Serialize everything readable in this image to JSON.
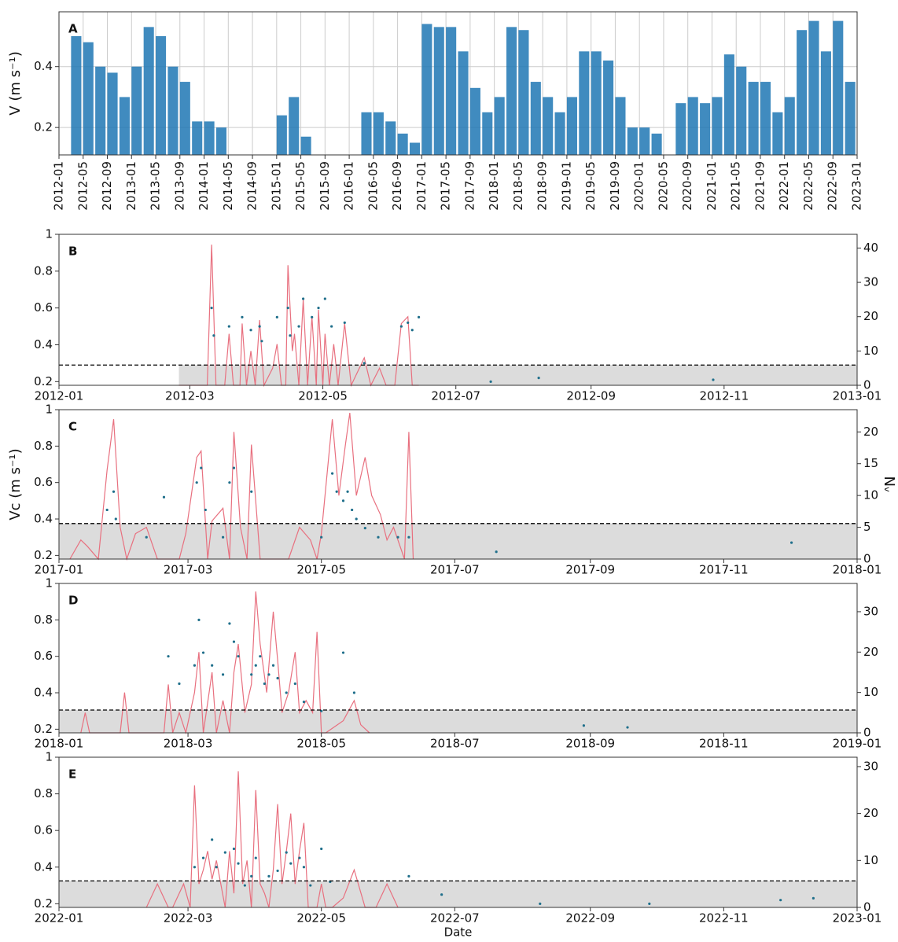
{
  "chart_data": [
    {
      "type": "bar",
      "panel_label": "A",
      "ylabel": "V (m s⁻¹)",
      "color": "#1f77b4",
      "grid": true,
      "xgrid": true,
      "xlim": [
        0,
        132
      ],
      "ylim": [
        0.11,
        0.58
      ],
      "yticks": [
        0.2,
        0.4
      ],
      "xticks": [
        {
          "value": 0,
          "label": "2012-01"
        },
        {
          "value": 4,
          "label": "2012-05"
        },
        {
          "value": 8,
          "label": "2012-09"
        },
        {
          "value": 12,
          "label": "2013-01"
        },
        {
          "value": 16,
          "label": "2013-05"
        },
        {
          "value": 20,
          "label": "2013-09"
        },
        {
          "value": 24,
          "label": "2014-01"
        },
        {
          "value": 28,
          "label": "2014-05"
        },
        {
          "value": 32,
          "label": "2014-09"
        },
        {
          "value": 36,
          "label": "2015-01"
        },
        {
          "value": 40,
          "label": "2015-05"
        },
        {
          "value": 44,
          "label": "2015-09"
        },
        {
          "value": 48,
          "label": "2016-01"
        },
        {
          "value": 52,
          "label": "2016-05"
        },
        {
          "value": 56,
          "label": "2016-09"
        },
        {
          "value": 60,
          "label": "2017-01"
        },
        {
          "value": 64,
          "label": "2017-05"
        },
        {
          "value": 68,
          "label": "2017-09"
        },
        {
          "value": 72,
          "label": "2018-01"
        },
        {
          "value": 76,
          "label": "2018-05"
        },
        {
          "value": 80,
          "label": "2018-09"
        },
        {
          "value": 84,
          "label": "2019-01"
        },
        {
          "value": 88,
          "label": "2019-05"
        },
        {
          "value": 92,
          "label": "2019-09"
        },
        {
          "value": 96,
          "label": "2020-01"
        },
        {
          "value": 100,
          "label": "2020-05"
        },
        {
          "value": 104,
          "label": "2020-09"
        },
        {
          "value": 108,
          "label": "2021-01"
        },
        {
          "value": 112,
          "label": "2021-05"
        },
        {
          "value": 116,
          "label": "2021-09"
        },
        {
          "value": 120,
          "label": "2022-01"
        },
        {
          "value": 124,
          "label": "2022-05"
        },
        {
          "value": 128,
          "label": "2022-09"
        },
        {
          "value": 132,
          "label": "2023-01"
        }
      ],
      "x": [
        0,
        2,
        4,
        6,
        8,
        10,
        12,
        14,
        16,
        18,
        20,
        22,
        24,
        26,
        28,
        30,
        32,
        34,
        36,
        38,
        40,
        42,
        44,
        46,
        48,
        50,
        52,
        54,
        56,
        58,
        60,
        62,
        64,
        66,
        68,
        70,
        72,
        74,
        76,
        78,
        80,
        82,
        84,
        86,
        88,
        90,
        92,
        94,
        96,
        98,
        100,
        102,
        104,
        106,
        108,
        110,
        112,
        114,
        116,
        118,
        120,
        122,
        124,
        126,
        128,
        130
      ],
      "values": [
        null,
        0.5,
        0.48,
        0.4,
        0.38,
        0.3,
        0.4,
        0.53,
        0.5,
        0.4,
        0.35,
        0.22,
        0.22,
        0.2,
        null,
        null,
        null,
        null,
        0.24,
        0.3,
        0.17,
        null,
        null,
        null,
        null,
        0.25,
        0.25,
        0.22,
        0.18,
        0.15,
        0.54,
        0.53,
        0.53,
        0.45,
        0.33,
        0.25,
        0.3,
        0.53,
        0.52,
        0.35,
        0.3,
        0.25,
        0.3,
        0.45,
        0.45,
        0.42,
        0.3,
        0.2,
        0.2,
        0.18,
        null,
        0.28,
        0.3,
        0.28,
        0.3,
        0.44,
        0.4,
        0.35,
        0.35,
        0.25,
        0.3,
        0.52,
        0.55,
        0.45,
        0.55,
        0.35
      ]
    },
    {
      "type": "scatter",
      "panel_label": "B",
      "xlim": [
        0,
        366
      ],
      "ylim": [
        0.18,
        1.0
      ],
      "yticks": [
        0.2,
        0.4,
        0.6,
        0.8,
        1.0
      ],
      "y2lim": [
        0,
        44
      ],
      "y2ticks": [
        0,
        10,
        20,
        30,
        40
      ],
      "threshold": 0.29,
      "shade_start": 55,
      "xticks": [
        {
          "value": 0,
          "label": "2012-01"
        },
        {
          "value": 60,
          "label": "2012-03"
        },
        {
          "value": 121,
          "label": "2012-05"
        },
        {
          "value": 182,
          "label": "2012-07"
        },
        {
          "value": 244,
          "label": "2012-09"
        },
        {
          "value": 305,
          "label": "2012-11"
        },
        {
          "value": 366,
          "label": "2013-01"
        }
      ],
      "series": [
        {
          "color": "#e8707f",
          "axis": "y2",
          "x": [
            55,
            68,
            70,
            72,
            76,
            78,
            80,
            83,
            84,
            86,
            88,
            90,
            92,
            94,
            98,
            100,
            102,
            104,
            105,
            107,
            108,
            110,
            112,
            114,
            116,
            118,
            119,
            121,
            122,
            124,
            126,
            128,
            131,
            134,
            140,
            143,
            147,
            150,
            154,
            157,
            160,
            162,
            165
          ],
          "values": [
            0,
            0,
            41,
            0,
            0,
            15,
            0,
            0,
            18,
            0,
            10,
            0,
            19,
            0,
            5,
            12,
            0,
            0,
            35,
            10,
            15,
            0,
            25,
            0,
            20,
            0,
            22,
            0,
            15,
            0,
            12,
            0,
            18,
            0,
            8,
            0,
            5,
            0,
            0,
            18,
            20,
            0,
            0
          ]
        },
        {
          "color": "#1f6f8b",
          "x": [
            70,
            71,
            78,
            84,
            88,
            92,
            93,
            100,
            105,
            106,
            110,
            112,
            116,
            119,
            122,
            125,
            131,
            140,
            157,
            160,
            162,
            165,
            198,
            220,
            300
          ],
          "values": [
            0.6,
            0.45,
            0.5,
            0.55,
            0.48,
            0.5,
            0.42,
            0.55,
            0.6,
            0.45,
            0.5,
            0.65,
            0.55,
            0.6,
            0.65,
            0.5,
            0.52,
            0.3,
            0.5,
            0.52,
            0.48,
            0.55,
            0.2,
            0.22,
            0.21
          ]
        }
      ]
    },
    {
      "type": "scatter",
      "panel_label": "C",
      "ylabel": "Vc (m s⁻¹)",
      "y2label": "Nᵥ",
      "xlim": [
        0,
        365
      ],
      "ylim": [
        0.18,
        1.0
      ],
      "yticks": [
        0.2,
        0.4,
        0.6,
        0.8,
        1.0
      ],
      "y2lim": [
        0,
        23.5
      ],
      "y2ticks": [
        0,
        5,
        10,
        15,
        20
      ],
      "threshold": 0.375,
      "shade_start": 0,
      "xticks": [
        {
          "value": 0,
          "label": "2017-01"
        },
        {
          "value": 59,
          "label": "2017-03"
        },
        {
          "value": 120,
          "label": "2017-05"
        },
        {
          "value": 181,
          "label": "2017-07"
        },
        {
          "value": 243,
          "label": "2017-09"
        },
        {
          "value": 304,
          "label": "2017-11"
        },
        {
          "value": 365,
          "label": "2018-01"
        }
      ],
      "series": [
        {
          "color": "#e8707f",
          "axis": "y2",
          "x": [
            5,
            10,
            13,
            18,
            22,
            25,
            28,
            31,
            35,
            40,
            45,
            55,
            58,
            63,
            65,
            68,
            70,
            75,
            78,
            80,
            83,
            86,
            88,
            92,
            105,
            110,
            115,
            118,
            120,
            125,
            128,
            131,
            133,
            136,
            140,
            143,
            147,
            150,
            153,
            155,
            158,
            160,
            162
          ],
          "values": [
            0,
            3,
            2,
            0,
            14,
            22,
            5,
            0,
            4,
            5,
            0,
            0,
            4,
            16,
            17,
            0,
            6,
            8,
            0,
            20,
            5,
            0,
            18,
            0,
            0,
            5,
            3,
            0,
            4,
            22,
            10,
            18,
            23,
            10,
            16,
            10,
            7,
            3,
            5,
            3,
            0,
            20,
            0
          ]
        },
        {
          "color": "#1f6f8b",
          "x": [
            22,
            25,
            26,
            40,
            48,
            63,
            65,
            67,
            75,
            78,
            80,
            88,
            120,
            125,
            127,
            130,
            132,
            134,
            136,
            140,
            146,
            155,
            160,
            200,
            335
          ],
          "values": [
            0.45,
            0.55,
            0.4,
            0.3,
            0.52,
            0.6,
            0.68,
            0.45,
            0.3,
            0.6,
            0.68,
            0.55,
            0.3,
            0.65,
            0.55,
            0.5,
            0.55,
            0.45,
            0.4,
            0.35,
            0.3,
            0.3,
            0.3,
            0.22,
            0.27
          ]
        }
      ]
    },
    {
      "type": "scatter",
      "panel_label": "D",
      "xlim": [
        0,
        365
      ],
      "ylim": [
        0.18,
        1.0
      ],
      "yticks": [
        0.2,
        0.4,
        0.6,
        0.8,
        1.0
      ],
      "y2lim": [
        0,
        37
      ],
      "y2ticks": [
        0,
        10,
        20,
        30
      ],
      "threshold": 0.305,
      "shade_start": 0,
      "xticks": [
        {
          "value": 0,
          "label": "2018-01"
        },
        {
          "value": 59,
          "label": "2018-03"
        },
        {
          "value": 120,
          "label": "2018-05"
        },
        {
          "value": 181,
          "label": "2018-07"
        },
        {
          "value": 243,
          "label": "2018-09"
        },
        {
          "value": 304,
          "label": "2018-11"
        },
        {
          "value": 365,
          "label": "2019-01"
        }
      ],
      "series": [
        {
          "color": "#e8707f",
          "axis": "y2",
          "x": [
            10,
            12,
            14,
            28,
            30,
            32,
            48,
            50,
            52,
            55,
            58,
            62,
            64,
            66,
            70,
            72,
            75,
            78,
            80,
            82,
            85,
            88,
            90,
            92,
            95,
            98,
            100,
            102,
            105,
            108,
            110,
            113,
            116,
            118,
            120,
            122,
            130,
            135,
            138,
            142
          ],
          "values": [
            0,
            5,
            0,
            0,
            10,
            0,
            0,
            12,
            0,
            5,
            0,
            10,
            20,
            0,
            15,
            0,
            8,
            0,
            15,
            22,
            5,
            12,
            35,
            22,
            10,
            30,
            18,
            5,
            10,
            20,
            5,
            8,
            5,
            25,
            0,
            0,
            3,
            8,
            2,
            0
          ]
        },
        {
          "color": "#1f6f8b",
          "x": [
            50,
            55,
            62,
            64,
            66,
            70,
            75,
            78,
            80,
            82,
            88,
            90,
            92,
            94,
            96,
            98,
            100,
            104,
            108,
            112,
            120,
            130,
            135,
            240,
            260
          ],
          "values": [
            0.6,
            0.45,
            0.55,
            0.8,
            0.62,
            0.55,
            0.5,
            0.78,
            0.68,
            0.6,
            0.5,
            0.55,
            0.6,
            0.45,
            0.5,
            0.55,
            0.48,
            0.4,
            0.45,
            0.35,
            0.3,
            0.62,
            0.4,
            0.22,
            0.21
          ]
        }
      ]
    },
    {
      "type": "scatter",
      "panel_label": "E",
      "xlabel": "Date",
      "xlim": [
        0,
        365
      ],
      "ylim": [
        0.18,
        1.0
      ],
      "yticks": [
        0.2,
        0.4,
        0.6,
        0.8,
        1.0
      ],
      "y2lim": [
        0,
        32
      ],
      "y2ticks": [
        0,
        10,
        20,
        30
      ],
      "threshold": 0.325,
      "shade_start": 0,
      "xticks": [
        {
          "value": 0,
          "label": "2022-01"
        },
        {
          "value": 59,
          "label": "2022-03"
        },
        {
          "value": 120,
          "label": "2022-05"
        },
        {
          "value": 181,
          "label": "2022-07"
        },
        {
          "value": 243,
          "label": "2022-09"
        },
        {
          "value": 304,
          "label": "2022-11"
        },
        {
          "value": 365,
          "label": "2023-01"
        }
      ],
      "series": [
        {
          "color": "#e8707f",
          "axis": "y2",
          "x": [
            40,
            45,
            50,
            52,
            57,
            60,
            62,
            64,
            66,
            68,
            70,
            72,
            74,
            76,
            78,
            80,
            82,
            84,
            86,
            88,
            90,
            92,
            94,
            96,
            98,
            100,
            102,
            104,
            106,
            108,
            110,
            112,
            114,
            118,
            120,
            122,
            125,
            130,
            135,
            140,
            145,
            150,
            155
          ],
          "values": [
            0,
            5,
            0,
            0,
            5,
            0,
            26,
            5,
            8,
            12,
            6,
            10,
            5,
            0,
            12,
            3,
            29,
            5,
            10,
            0,
            25,
            5,
            3,
            0,
            8,
            22,
            5,
            12,
            20,
            5,
            12,
            18,
            0,
            0,
            5,
            0,
            0,
            2,
            8,
            0,
            0,
            5,
            0
          ]
        },
        {
          "color": "#1f6f8b",
          "x": [
            62,
            66,
            70,
            72,
            76,
            80,
            82,
            88,
            90,
            96,
            104,
            106,
            110,
            112,
            115,
            120,
            160,
            175,
            270,
            330,
            345,
            220,
            85,
            100,
            124
          ],
          "values": [
            0.4,
            0.45,
            0.55,
            0.4,
            0.48,
            0.5,
            0.42,
            0.35,
            0.45,
            0.35,
            0.48,
            0.42,
            0.45,
            0.4,
            0.3,
            0.5,
            0.35,
            0.25,
            0.2,
            0.22,
            0.23,
            0.2,
            0.3,
            0.38,
            0.32
          ]
        }
      ]
    }
  ]
}
